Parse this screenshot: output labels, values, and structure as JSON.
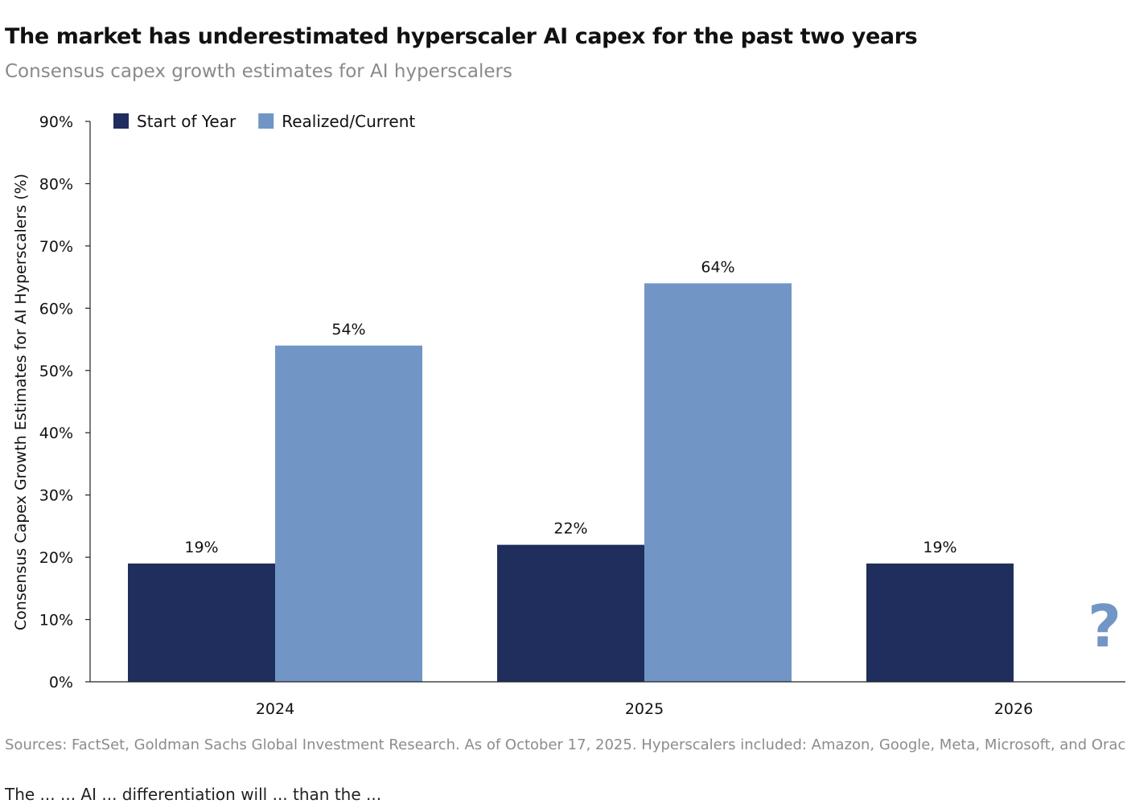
{
  "title": "The market has underestimated hyperscaler AI capex for the past two years",
  "subtitle": "Consensus capex growth estimates for AI hyperscalers",
  "source": "Sources: FactSet, Goldman Sachs Global Investment Research. As of October 17, 2025. Hyperscalers included: Amazon, Google, Meta, Microsoft, and Oracle.",
  "body_fragment": "The ... ... AI ... differentiation will ... than the ...",
  "chart_data": {
    "type": "bar",
    "categories": [
      "2024",
      "2025",
      "2026"
    ],
    "series": [
      {
        "name": "Start of Year",
        "color": "#1f2e5c",
        "values": [
          19,
          22,
          19
        ],
        "labels": [
          "19%",
          "22%",
          "19%"
        ]
      },
      {
        "name": "Realized/Current",
        "color": "#7196c6",
        "values": [
          54,
          64,
          null
        ],
        "labels": [
          "54%",
          "64%",
          ""
        ]
      }
    ],
    "ylabel": "Consensus Capex Growth Estimates for AI Hyperscalers (%)",
    "xlabel": "",
    "ylim": [
      0,
      90
    ],
    "yticks": [
      "0%",
      "10%",
      "20%",
      "30%",
      "40%",
      "50%",
      "60%",
      "70%",
      "80%",
      "90%"
    ],
    "annotation": {
      "text": "?",
      "color": "#7196c6"
    },
    "grid": false,
    "legend": "top-left"
  }
}
